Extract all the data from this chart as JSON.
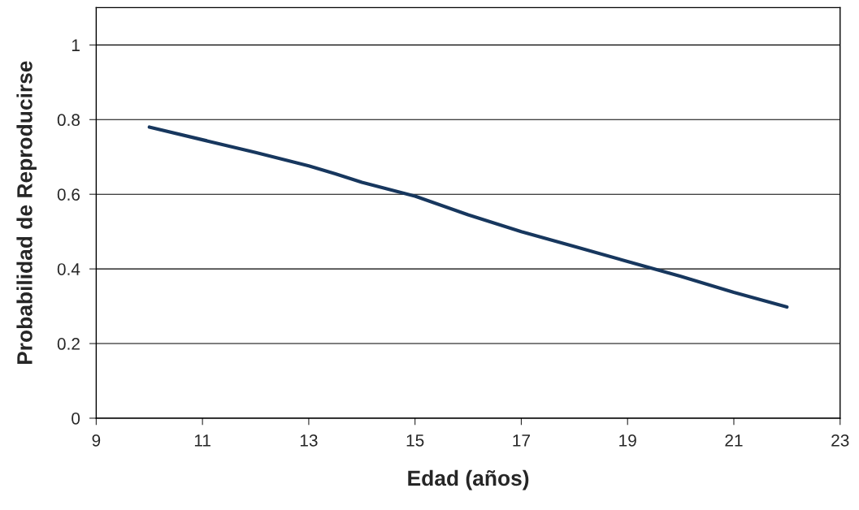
{
  "chart_data": {
    "type": "line",
    "xlabel": "Edad (años)",
    "ylabel": "Probabilidad de Reproducirse",
    "x": [
      10,
      11,
      12,
      13,
      13.5,
      14,
      15,
      16,
      17,
      18,
      19,
      20,
      21,
      22
    ],
    "series": [
      {
        "color": "#17375e",
        "values": [
          0.78,
          0.746,
          0.712,
          0.676,
          0.655,
          0.632,
          0.595,
          0.545,
          0.5,
          0.46,
          0.42,
          0.38,
          0.337,
          0.298
        ]
      }
    ],
    "xlim": [
      9,
      23
    ],
    "xticks": [
      9,
      11,
      13,
      15,
      17,
      19,
      21,
      23
    ],
    "ylim": [
      0,
      1.1
    ],
    "yticks": [
      0,
      0.2,
      0.4,
      0.6,
      0.8,
      1
    ],
    "grid": "y",
    "legend": false,
    "marker": "none",
    "line_style": "solid"
  }
}
